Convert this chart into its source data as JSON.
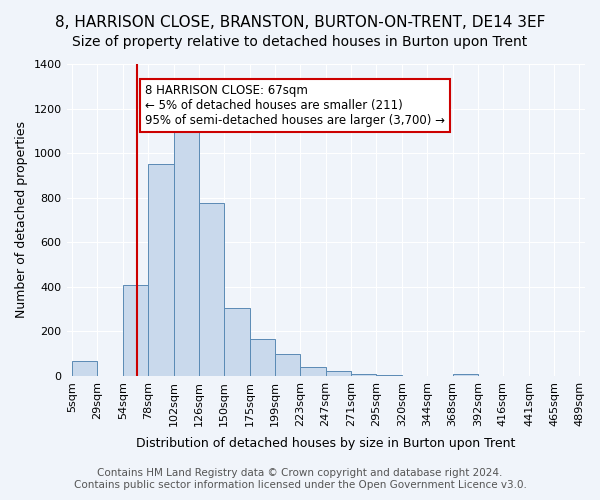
{
  "title": "8, HARRISON CLOSE, BRANSTON, BURTON-ON-TRENT, DE14 3EF",
  "subtitle": "Size of property relative to detached houses in Burton upon Trent",
  "xlabel": "Distribution of detached houses by size in Burton upon Trent",
  "ylabel": "Number of detached properties",
  "bin_edges": [
    5,
    29,
    54,
    78,
    102,
    126,
    150,
    175,
    199,
    223,
    247,
    271,
    295,
    320,
    344,
    368,
    392,
    416,
    441,
    465,
    489
  ],
  "bin_labels": [
    "5sqm",
    "29sqm",
    "54sqm",
    "78sqm",
    "102sqm",
    "126sqm",
    "150sqm",
    "175sqm",
    "199sqm",
    "223sqm",
    "247sqm",
    "271sqm",
    "295sqm",
    "320sqm",
    "344sqm",
    "368sqm",
    "392sqm",
    "416sqm",
    "441sqm",
    "465sqm",
    "489sqm"
  ],
  "counts": [
    65,
    0,
    410,
    950,
    1100,
    775,
    305,
    165,
    100,
    40,
    20,
    10,
    5,
    0,
    0,
    10,
    0,
    0,
    0,
    0
  ],
  "bar_facecolor": "#c9d9ec",
  "bar_edgecolor": "#5a8ab5",
  "vline_x": 67,
  "vline_color": "#cc0000",
  "annotation_text": "8 HARRISON CLOSE: 67sqm\n← 5% of detached houses are smaller (211)\n95% of semi-detached houses are larger (3,700) →",
  "annotation_box_edgecolor": "#cc0000",
  "annotation_box_facecolor": "#ffffff",
  "ylim": [
    0,
    1400
  ],
  "yticks": [
    0,
    200,
    400,
    600,
    800,
    1000,
    1200,
    1400
  ],
  "footer_line1": "Contains HM Land Registry data © Crown copyright and database right 2024.",
  "footer_line2": "Contains public sector information licensed under the Open Government Licence v3.0.",
  "background_color": "#f0f4fa",
  "grid_color": "#ffffff",
  "title_fontsize": 11,
  "subtitle_fontsize": 10,
  "axis_label_fontsize": 9,
  "tick_fontsize": 8,
  "footer_fontsize": 7.5
}
